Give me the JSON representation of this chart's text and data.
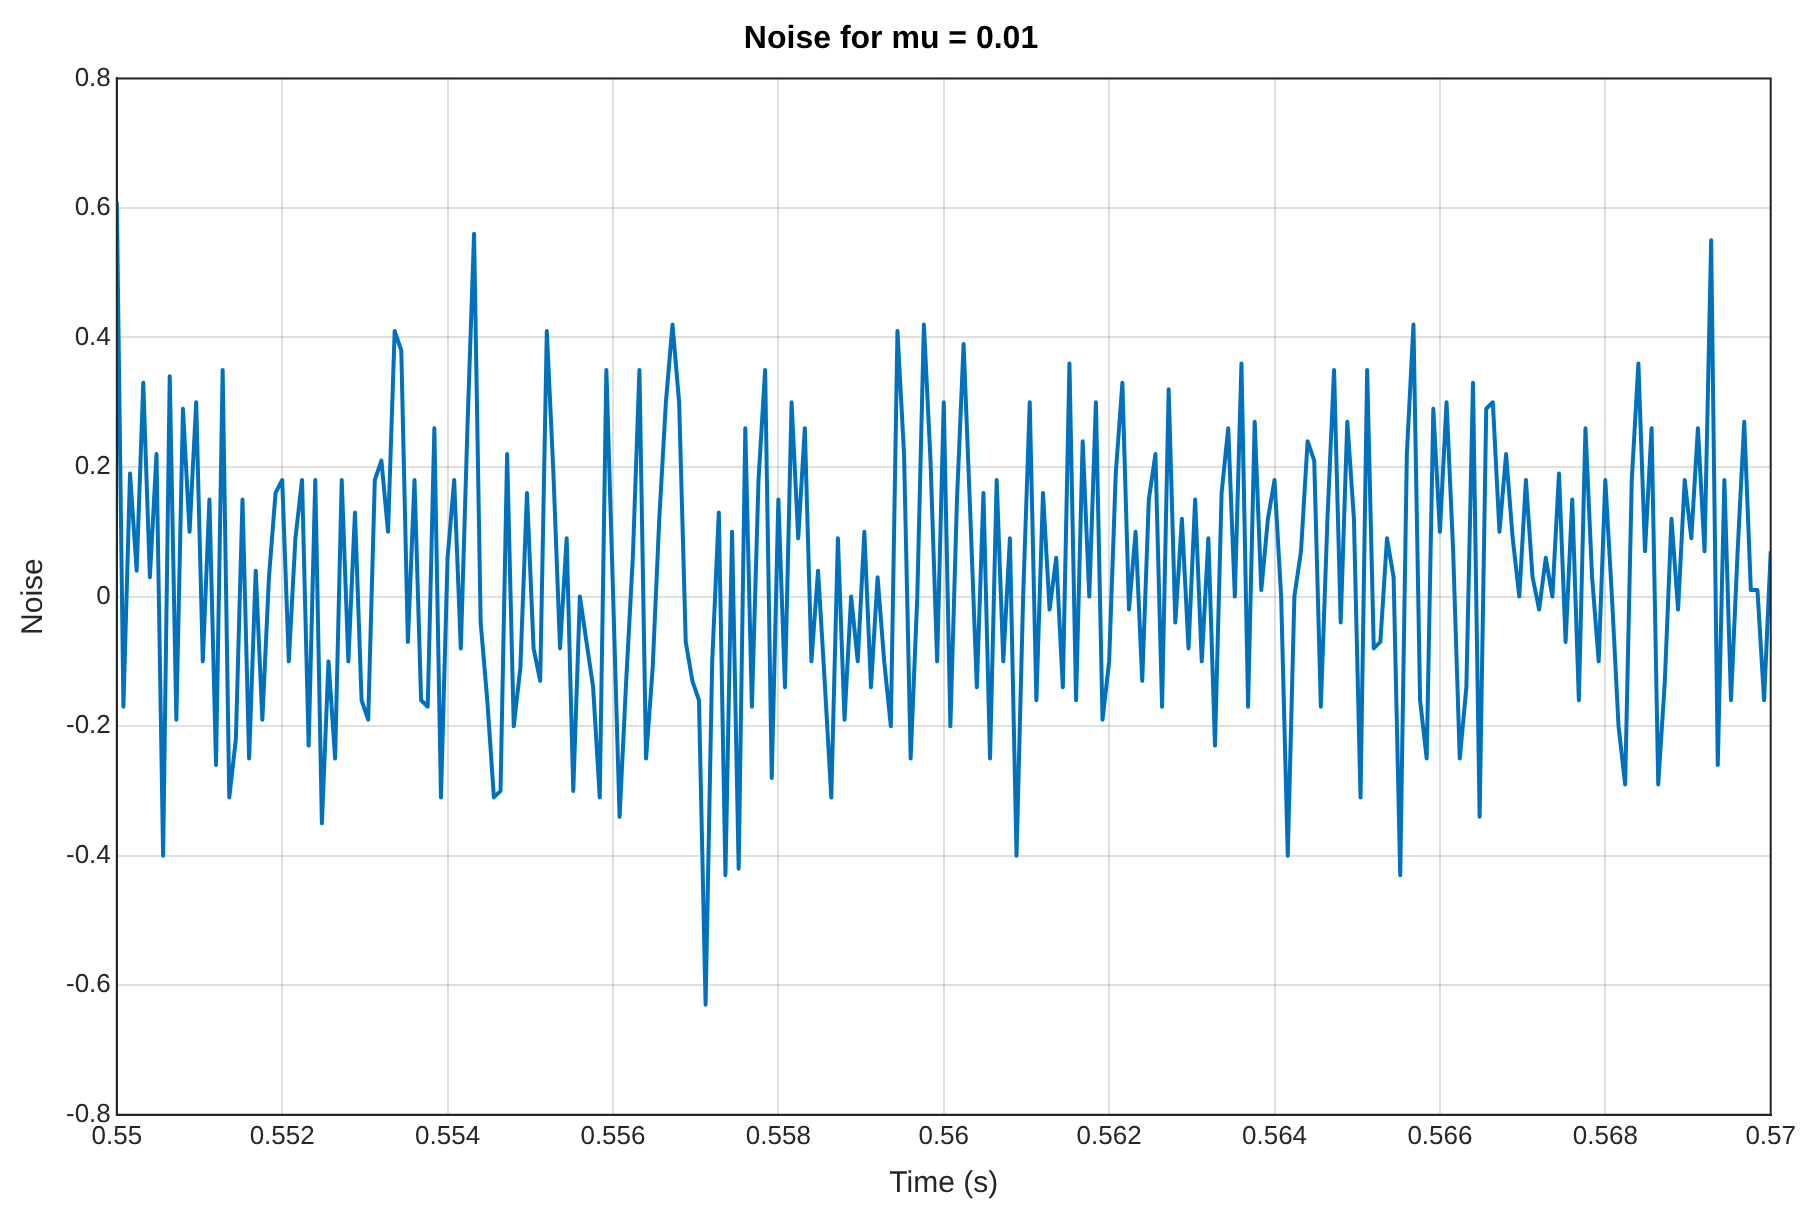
{
  "chart_data": {
    "type": "line",
    "title": "Noise for mu = 0.01",
    "xlabel": "Time (s)",
    "ylabel": "Noise",
    "grid": true,
    "marker": "none",
    "line_style": "solid",
    "xlim": [
      0.55,
      0.57
    ],
    "xticks": [
      0.55,
      0.552,
      0.554,
      0.556,
      0.558,
      0.56,
      0.562,
      0.564,
      0.566,
      0.568,
      0.57
    ],
    "ylim": [
      -0.8,
      0.8
    ],
    "yticks": [
      -0.8,
      -0.6,
      -0.4,
      -0.2,
      0,
      0.2,
      0.4,
      0.6,
      0.8
    ],
    "x": [
      0.55,
      0.55008,
      0.55016,
      0.55024,
      0.55032,
      0.5504,
      0.55048,
      0.55056,
      0.55064,
      0.55072,
      0.5508,
      0.55088,
      0.55096,
      0.55104,
      0.55112,
      0.5512,
      0.55128,
      0.55136,
      0.55144,
      0.55152,
      0.5516,
      0.55168,
      0.55176,
      0.55184,
      0.55192,
      0.552,
      0.55208,
      0.55216,
      0.55224,
      0.55232,
      0.5524,
      0.55248,
      0.55256,
      0.55264,
      0.55272,
      0.5528,
      0.55288,
      0.55296,
      0.55304,
      0.55312,
      0.5532,
      0.55328,
      0.55336,
      0.55344,
      0.55352,
      0.5536,
      0.55368,
      0.55376,
      0.55384,
      0.55392,
      0.554,
      0.55408,
      0.55416,
      0.55424,
      0.55432,
      0.5544,
      0.55448,
      0.55456,
      0.55464,
      0.55472,
      0.5548,
      0.55488,
      0.55496,
      0.55504,
      0.55512,
      0.5552,
      0.55528,
      0.55536,
      0.55544,
      0.55552,
      0.5556,
      0.55568,
      0.55576,
      0.55584,
      0.55592,
      0.556,
      0.55608,
      0.55616,
      0.55624,
      0.55632,
      0.5564,
      0.55648,
      0.55656,
      0.55664,
      0.55672,
      0.5568,
      0.55688,
      0.55696,
      0.55704,
      0.55712,
      0.5572,
      0.55728,
      0.55736,
      0.55744,
      0.55752,
      0.5576,
      0.55768,
      0.55776,
      0.55784,
      0.55792,
      0.558,
      0.55808,
      0.55816,
      0.55824,
      0.55832,
      0.5584,
      0.55848,
      0.55856,
      0.55864,
      0.55872,
      0.5588,
      0.55888,
      0.55896,
      0.55904,
      0.55912,
      0.5592,
      0.55928,
      0.55936,
      0.55944,
      0.55952,
      0.5596,
      0.55968,
      0.55976,
      0.55984,
      0.55992,
      0.56,
      0.56008,
      0.56016,
      0.56024,
      0.56032,
      0.5604,
      0.56048,
      0.56056,
      0.56064,
      0.56072,
      0.5608,
      0.56088,
      0.56096,
      0.56104,
      0.56112,
      0.5612,
      0.56128,
      0.56136,
      0.56144,
      0.56152,
      0.5616,
      0.56168,
      0.56176,
      0.56184,
      0.56192,
      0.562,
      0.56208,
      0.56216,
      0.56224,
      0.56232,
      0.5624,
      0.56248,
      0.56256,
      0.56264,
      0.56272,
      0.5628,
      0.56288,
      0.56296,
      0.56304,
      0.56312,
      0.5632,
      0.56328,
      0.56336,
      0.56344,
      0.56352,
      0.5636,
      0.56368,
      0.56376,
      0.56384,
      0.56392,
      0.564,
      0.56408,
      0.56416,
      0.56424,
      0.56432,
      0.5644,
      0.56448,
      0.56456,
      0.56464,
      0.56472,
      0.5648,
      0.56488,
      0.56496,
      0.56504,
      0.56512,
      0.5652,
      0.56528,
      0.56536,
      0.56544,
      0.56552,
      0.5656,
      0.56568,
      0.56576,
      0.56584,
      0.56592,
      0.566,
      0.56608,
      0.56616,
      0.56624,
      0.56632,
      0.5664,
      0.56648,
      0.56656,
      0.56664,
      0.56672,
      0.5668,
      0.56688,
      0.56696,
      0.56704,
      0.56712,
      0.5672,
      0.56728,
      0.56736,
      0.56744,
      0.56752,
      0.5676,
      0.56768,
      0.56776,
      0.56784,
      0.56792,
      0.568,
      0.56808,
      0.56816,
      0.56824,
      0.56832,
      0.5684,
      0.56848,
      0.56856,
      0.56864,
      0.56872,
      0.5688,
      0.56888,
      0.56896,
      0.56904,
      0.56912,
      0.5692,
      0.56928,
      0.56936,
      0.56944,
      0.56952,
      0.5696,
      0.56968,
      0.56976,
      0.56984,
      0.56992,
      0.57
    ],
    "series": [
      {
        "color": "#0072bd",
        "values": [
          0.61,
          -0.17,
          0.19,
          0.04,
          0.33,
          0.03,
          0.22,
          -0.4,
          0.34,
          -0.19,
          0.29,
          0.1,
          0.3,
          -0.1,
          0.15,
          -0.26,
          0.35,
          -0.31,
          -0.22,
          0.15,
          -0.25,
          0.04,
          -0.19,
          0.03,
          0.16,
          0.18,
          -0.1,
          0.09,
          0.18,
          -0.23,
          0.18,
          -0.35,
          -0.1,
          -0.25,
          0.18,
          -0.1,
          0.13,
          -0.16,
          -0.19,
          0.18,
          0.21,
          0.1,
          0.41,
          0.38,
          -0.07,
          0.18,
          -0.16,
          -0.17,
          0.26,
          -0.31,
          0.06,
          0.18,
          -0.08,
          0.26,
          0.56,
          -0.04,
          -0.16,
          -0.31,
          -0.3,
          0.22,
          -0.2,
          -0.11,
          0.16,
          -0.08,
          -0.13,
          0.41,
          0.19,
          -0.08,
          0.09,
          -0.3,
          0.0,
          -0.07,
          -0.14,
          -0.31,
          0.35,
          0.01,
          -0.34,
          -0.13,
          0.06,
          0.35,
          -0.25,
          -0.11,
          0.12,
          0.3,
          0.42,
          0.3,
          -0.07,
          -0.13,
          -0.16,
          -0.63,
          -0.1,
          0.13,
          -0.43,
          0.1,
          -0.42,
          0.26,
          -0.17,
          0.18,
          0.35,
          -0.28,
          0.15,
          -0.14,
          0.3,
          0.09,
          0.26,
          -0.1,
          0.04,
          -0.13,
          -0.31,
          0.09,
          -0.19,
          0.0,
          -0.1,
          0.1,
          -0.14,
          0.03,
          -0.1,
          -0.2,
          0.41,
          0.22,
          -0.25,
          0.0,
          0.42,
          0.21,
          -0.1,
          0.3,
          -0.2,
          0.15,
          0.39,
          0.13,
          -0.14,
          0.16,
          -0.25,
          0.18,
          -0.1,
          0.09,
          -0.4,
          0.0,
          0.3,
          -0.16,
          0.16,
          -0.02,
          0.06,
          -0.14,
          0.36,
          -0.16,
          0.24,
          0.0,
          0.3,
          -0.19,
          -0.1,
          0.19,
          0.33,
          -0.02,
          0.1,
          -0.13,
          0.15,
          0.22,
          -0.17,
          0.32,
          -0.04,
          0.12,
          -0.08,
          0.15,
          -0.1,
          0.09,
          -0.23,
          0.16,
          0.26,
          0.0,
          0.36,
          -0.17,
          0.27,
          0.01,
          0.12,
          0.18,
          0.0,
          -0.4,
          0.0,
          0.07,
          0.24,
          0.21,
          -0.17,
          0.12,
          0.35,
          -0.04,
          0.27,
          0.12,
          -0.31,
          0.35,
          -0.08,
          -0.07,
          0.09,
          0.03,
          -0.43,
          0.22,
          0.42,
          -0.16,
          -0.25,
          0.29,
          0.1,
          0.3,
          0.07,
          -0.25,
          -0.14,
          0.33,
          -0.34,
          0.29,
          0.3,
          0.1,
          0.22,
          0.09,
          0.0,
          0.18,
          0.03,
          -0.02,
          0.06,
          0.0,
          0.19,
          -0.07,
          0.15,
          -0.16,
          0.26,
          0.03,
          -0.1,
          0.18,
          0.0,
          -0.2,
          -0.29,
          0.18,
          0.36,
          0.07,
          0.26,
          -0.29,
          -0.13,
          0.12,
          -0.02,
          0.18,
          0.09,
          0.26,
          0.07,
          0.55,
          -0.26,
          0.18,
          -0.16,
          0.07,
          0.27,
          0.01,
          0.01,
          -0.16,
          0.07
        ]
      }
    ]
  }
}
